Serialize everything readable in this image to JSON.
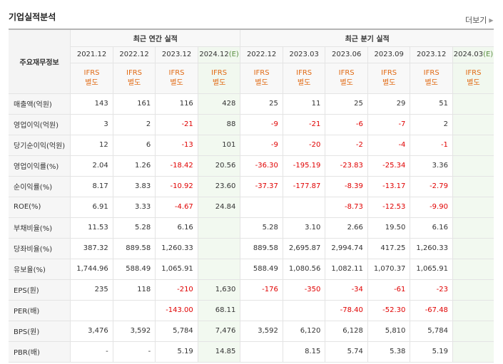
{
  "title": "기업실적분석",
  "more_label": "더보기",
  "table": {
    "label_header": "주요재무정보",
    "annual_header": "최근 연간 실적",
    "quarter_header": "최근 분기 실적",
    "periods": [
      "2021.12",
      "2022.12",
      "2023.12",
      "2024.12(E)",
      "2022.12",
      "2023.03",
      "2023.06",
      "2023.09",
      "2023.12",
      "2024.03(E)"
    ],
    "ifrs": [
      "IFRS\n별도",
      "IFRS\n별도",
      "IFRS\n별도",
      "IFRS\n별도",
      "IFRS\n별도",
      "IFRS\n별도",
      "IFRS\n별도",
      "IFRS\n별도",
      "IFRS\n별도",
      "IFRS\n별도"
    ],
    "rows": [
      {
        "label": "매출액(억원)",
        "values": [
          "143",
          "161",
          "116",
          "428",
          "25",
          "11",
          "25",
          "29",
          "51",
          ""
        ]
      },
      {
        "label": "영업이익(억원)",
        "values": [
          "3",
          "2",
          "-21",
          "88",
          "-9",
          "-21",
          "-6",
          "-7",
          "2",
          ""
        ]
      },
      {
        "label": "당기순이익(억원)",
        "values": [
          "12",
          "6",
          "-13",
          "101",
          "-9",
          "-20",
          "-2",
          "-4",
          "-1",
          ""
        ]
      },
      {
        "label": "영업이익률(%)",
        "values": [
          "2.04",
          "1.26",
          "-18.42",
          "20.56",
          "-36.30",
          "-195.19",
          "-23.83",
          "-25.34",
          "3.36",
          ""
        ]
      },
      {
        "label": "순이익률(%)",
        "values": [
          "8.17",
          "3.83",
          "-10.92",
          "23.60",
          "-37.37",
          "-177.87",
          "-8.39",
          "-13.17",
          "-2.79",
          ""
        ]
      },
      {
        "label": "ROE(%)",
        "values": [
          "6.91",
          "3.33",
          "-4.67",
          "24.84",
          "",
          "",
          "-8.73",
          "-12.53",
          "-9.90",
          ""
        ]
      },
      {
        "label": "부채비율(%)",
        "values": [
          "11.53",
          "5.28",
          "6.16",
          "",
          "5.28",
          "3.10",
          "2.66",
          "19.50",
          "6.16",
          ""
        ]
      },
      {
        "label": "당좌비율(%)",
        "values": [
          "387.32",
          "889.58",
          "1,260.33",
          "",
          "889.58",
          "2,695.87",
          "2,994.74",
          "417.25",
          "1,260.33",
          ""
        ]
      },
      {
        "label": "유보율(%)",
        "values": [
          "1,744.96",
          "588.49",
          "1,065.91",
          "",
          "588.49",
          "1,080.56",
          "1,082.11",
          "1,070.37",
          "1,065.91",
          ""
        ]
      },
      {
        "label": "EPS(원)",
        "values": [
          "235",
          "118",
          "-210",
          "1,630",
          "-176",
          "-350",
          "-34",
          "-61",
          "-23",
          ""
        ]
      },
      {
        "label": "PER(배)",
        "values": [
          "",
          "",
          "-143.00",
          "68.11",
          "",
          "",
          "-78.40",
          "-52.30",
          "-67.48",
          ""
        ]
      },
      {
        "label": "BPS(원)",
        "values": [
          "3,476",
          "3,592",
          "5,784",
          "7,476",
          "3,592",
          "6,120",
          "6,128",
          "5,810",
          "5,784",
          ""
        ]
      },
      {
        "label": "PBR(배)",
        "values": [
          "-",
          "-",
          "5.19",
          "14.85",
          "",
          "8.15",
          "5.74",
          "5.38",
          "5.19",
          ""
        ]
      }
    ]
  },
  "colors": {
    "negative": "#e00000",
    "ifrs": "#e16a14",
    "estimate_bg": "#f2f9f0"
  }
}
